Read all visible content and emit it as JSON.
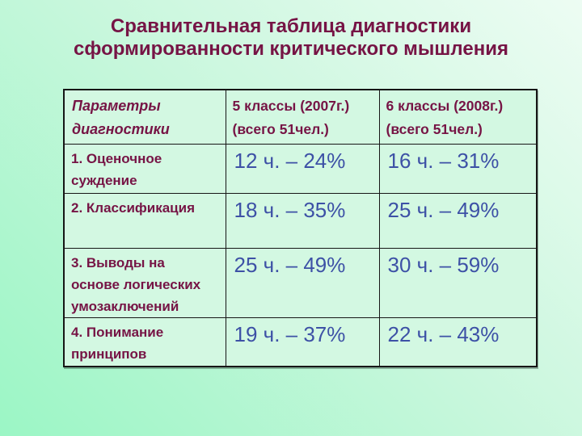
{
  "slide": {
    "title": "Сравнительная таблица диагностики\nсформированности критического мышления"
  },
  "colors": {
    "accent_maroon": "#761445",
    "value_blue": "#3d51a6",
    "cell_background": "#d3f8e2",
    "table_border": "#161616",
    "background_gradient_start": "#9bf6c5",
    "background_gradient_end": "#edfcf3"
  },
  "table": {
    "header": {
      "parameters": "Параметры\nдиагностики",
      "class5_2007": "5 классы (2007г.)\n(всего 51чел.)",
      "class6_2008": "6 классы (2008г.)\n(всего 51чел.)"
    },
    "rows": [
      {
        "param": "1. Оценочное\n суждение",
        "v2007": "12 ч. – 24%",
        "v2008": "16 ч. – 31%"
      },
      {
        "param": "2. Классификация",
        "v2007": "18 ч. – 35%",
        "v2008": "25 ч. – 49%"
      },
      {
        "param": "3. Выводы на\nоснове логических\nумозаключений",
        "v2007": "25 ч. – 49%",
        "v2008": "30 ч. – 59%"
      },
      {
        "param": "4. Понимание\nпринципов",
        "v2007": "19 ч. – 37%",
        "v2008": "22 ч. – 43%"
      }
    ]
  },
  "chart_data": {
    "type": "table",
    "title": "Сравнительная таблица диагностики сформированности критического мышления",
    "categories": [
      "Оценочное суждение",
      "Классификация",
      "Выводы на основе логических умозаключений",
      "Понимание принципов"
    ],
    "series": [
      {
        "name": "5 классы (2007г.), чел. (всего 51)",
        "values": [
          12,
          18,
          25,
          19
        ]
      },
      {
        "name": "5 классы (2007г.), %",
        "values": [
          24,
          35,
          49,
          37
        ]
      },
      {
        "name": "6 классы (2008г.), чел. (всего 51)",
        "values": [
          16,
          25,
          30,
          22
        ]
      },
      {
        "name": "6 классы (2008г.), %",
        "values": [
          31,
          49,
          59,
          43
        ]
      }
    ]
  }
}
